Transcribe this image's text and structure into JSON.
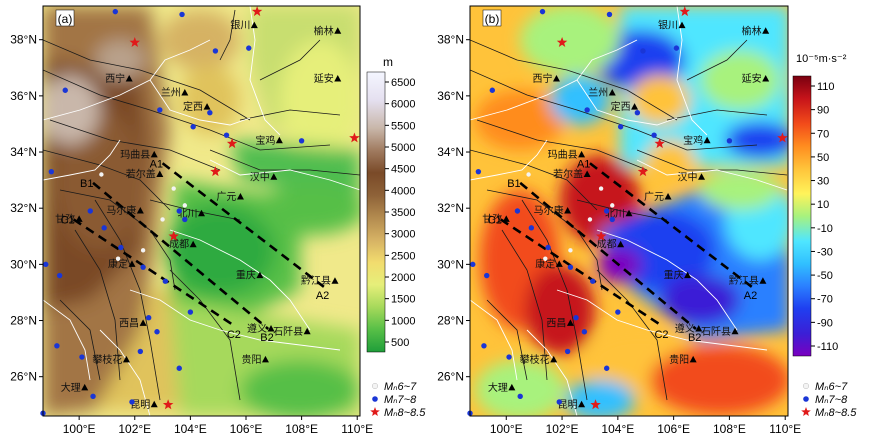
{
  "panels": [
    {
      "id": "a",
      "tag": "(a)",
      "colorbar": {
        "unit": "m",
        "ticks": [
          "6500",
          "6000",
          "5500",
          "5000",
          "4500",
          "4000",
          "3500",
          "3000",
          "2500",
          "2000",
          "1500",
          "1000",
          "500"
        ],
        "colors": [
          "#1f9e3a",
          "#57bf47",
          "#a6d95b",
          "#e6ef7a",
          "#f2dc6e",
          "#d6b264",
          "#b38b4f",
          "#8e6238",
          "#7a4a28",
          "#a07b60",
          "#c9b7aa",
          "#e5e0f0",
          "#f4f6ff"
        ]
      }
    },
    {
      "id": "b",
      "tag": "(b)",
      "colorbar": {
        "unit": "10⁻⁵m·s⁻²",
        "ticks": [
          "110",
          "90",
          "70",
          "50",
          "30",
          "10",
          "-10",
          "-30",
          "-50",
          "-70",
          "-90",
          "-110"
        ],
        "colors": [
          "#7a00c0",
          "#3b1fd6",
          "#1f3ff0",
          "#2b80ff",
          "#31c0ff",
          "#4fe6ff",
          "#a8f27d",
          "#fff35a",
          "#ffc33a",
          "#ff8c1f",
          "#f24b1a",
          "#c6131a",
          "#7a0010"
        ]
      }
    }
  ],
  "axes": {
    "x_ticks": [
      "100°E",
      "102°E",
      "104°E",
      "106°E",
      "108°E",
      "110°E"
    ],
    "y_ticks": [
      "38°N",
      "36°N",
      "34°N",
      "32°N",
      "30°N",
      "28°N",
      "26°N"
    ],
    "xlim": [
      98.7,
      110.1
    ],
    "ylim": [
      24.6,
      39.2
    ]
  },
  "cities": [
    {
      "name": "银川",
      "lon": 106.3,
      "lat": 38.5
    },
    {
      "name": "榆林",
      "lon": 109.3,
      "lat": 38.3
    },
    {
      "name": "西宁",
      "lon": 101.8,
      "lat": 36.6
    },
    {
      "name": "兰州",
      "lon": 103.8,
      "lat": 36.1
    },
    {
      "name": "延安",
      "lon": 109.3,
      "lat": 36.6
    },
    {
      "name": "定西",
      "lon": 104.6,
      "lat": 35.6
    },
    {
      "name": "宝鸡",
      "lon": 107.2,
      "lat": 34.4
    },
    {
      "name": "玛曲县",
      "lon": 102.7,
      "lat": 33.9
    },
    {
      "name": "若尔盖",
      "lon": 102.9,
      "lat": 33.2
    },
    {
      "name": "甘孜",
      "lon": 100.0,
      "lat": 31.6
    },
    {
      "name": "马尔康",
      "lon": 102.2,
      "lat": 31.9
    },
    {
      "name": "广元",
      "lon": 105.8,
      "lat": 32.4
    },
    {
      "name": "汉中",
      "lon": 107.0,
      "lat": 33.1
    },
    {
      "name": "北川",
      "lon": 104.4,
      "lat": 31.8
    },
    {
      "name": "成都",
      "lon": 104.1,
      "lat": 30.7
    },
    {
      "name": "康定",
      "lon": 101.9,
      "lat": 30.0
    },
    {
      "name": "重庆",
      "lon": 106.5,
      "lat": 29.6
    },
    {
      "name": "黔江县",
      "lon": 109.2,
      "lat": 29.4
    },
    {
      "name": "西昌",
      "lon": 102.3,
      "lat": 27.9
    },
    {
      "name": "遵义",
      "lon": 106.9,
      "lat": 27.7
    },
    {
      "name": "石阡县",
      "lon": 108.2,
      "lat": 27.6
    },
    {
      "name": "攀枝花",
      "lon": 101.7,
      "lat": 26.6
    },
    {
      "name": "贵阳",
      "lon": 106.7,
      "lat": 26.6
    },
    {
      "name": "大理",
      "lon": 100.2,
      "lat": 25.6
    },
    {
      "name": "昆明",
      "lon": 102.7,
      "lat": 25.0
    }
  ],
  "profiles": [
    {
      "start": "A1",
      "end": "A2",
      "lon1": 103.0,
      "lat1": 33.6,
      "lon2": 108.8,
      "lat2": 29.2
    },
    {
      "start": "B1",
      "end": "B2",
      "lon1": 100.5,
      "lat1": 32.9,
      "lon2": 106.8,
      "lat2": 27.7
    },
    {
      "start": "C1",
      "end": "C2",
      "lon1": 99.8,
      "lat1": 31.6,
      "lon2": 105.6,
      "lat2": 27.8
    }
  ],
  "earthquakes": [
    {
      "mag": "6-7",
      "lon": 100.8,
      "lat": 33.2
    },
    {
      "mag": "6-7",
      "lon": 103.4,
      "lat": 32.7
    },
    {
      "mag": "6-7",
      "lon": 102.3,
      "lat": 30.5
    },
    {
      "mag": "6-7",
      "lon": 103.0,
      "lat": 31.6
    },
    {
      "mag": "6-7",
      "lon": 103.8,
      "lat": 32.1
    },
    {
      "mag": "6-7",
      "lon": 101.4,
      "lat": 30.2
    },
    {
      "mag": "7-8",
      "lon": 101.3,
      "lat": 39.0
    },
    {
      "mag": "7-8",
      "lon": 103.7,
      "lat": 38.9
    },
    {
      "mag": "7-8",
      "lon": 104.9,
      "lat": 37.6
    },
    {
      "mag": "7-8",
      "lon": 106.1,
      "lat": 37.7
    },
    {
      "mag": "7-8",
      "lon": 99.5,
      "lat": 36.2
    },
    {
      "mag": "7-8",
      "lon": 102.9,
      "lat": 35.5
    },
    {
      "mag": "7-8",
      "lon": 104.1,
      "lat": 34.9
    },
    {
      "mag": "7-8",
      "lon": 104.7,
      "lat": 35.4
    },
    {
      "mag": "7-8",
      "lon": 105.3,
      "lat": 34.6
    },
    {
      "mag": "7-8",
      "lon": 108.0,
      "lat": 34.4
    },
    {
      "mag": "7-8",
      "lon": 99.0,
      "lat": 33.3
    },
    {
      "mag": "7-8",
      "lon": 100.4,
      "lat": 31.9
    },
    {
      "mag": "7-8",
      "lon": 100.9,
      "lat": 31.3
    },
    {
      "mag": "7-8",
      "lon": 101.5,
      "lat": 30.6
    },
    {
      "mag": "7-8",
      "lon": 103.6,
      "lat": 31.9
    },
    {
      "mag": "7-8",
      "lon": 103.8,
      "lat": 31.6
    },
    {
      "mag": "7-8",
      "lon": 102.3,
      "lat": 29.9
    },
    {
      "mag": "7-8",
      "lon": 99.3,
      "lat": 29.6
    },
    {
      "mag": "7-8",
      "lon": 98.8,
      "lat": 30.0
    },
    {
      "mag": "7-8",
      "lon": 103.1,
      "lat": 29.4
    },
    {
      "mag": "7-8",
      "lon": 102.5,
      "lat": 28.1
    },
    {
      "mag": "7-8",
      "lon": 102.8,
      "lat": 27.6
    },
    {
      "mag": "7-8",
      "lon": 104.0,
      "lat": 28.3
    },
    {
      "mag": "7-8",
      "lon": 102.2,
      "lat": 26.9
    },
    {
      "mag": "7-8",
      "lon": 99.2,
      "lat": 27.1
    },
    {
      "mag": "7-8",
      "lon": 100.1,
      "lat": 26.7
    },
    {
      "mag": "7-8",
      "lon": 100.5,
      "lat": 25.3
    },
    {
      "mag": "7-8",
      "lon": 101.9,
      "lat": 25.1
    },
    {
      "mag": "7-8",
      "lon": 103.6,
      "lat": 26.3
    },
    {
      "mag": "7-8",
      "lon": 98.7,
      "lat": 24.7
    },
    {
      "mag": "8-8.5",
      "lon": 106.4,
      "lat": 39.0
    },
    {
      "mag": "8-8.5",
      "lon": 102.0,
      "lat": 37.9
    },
    {
      "mag": "8-8.5",
      "lon": 105.5,
      "lat": 34.3
    },
    {
      "mag": "8-8.5",
      "lon": 109.9,
      "lat": 34.5
    },
    {
      "mag": "8-8.5",
      "lon": 104.9,
      "lat": 33.3
    },
    {
      "mag": "8-8.5",
      "lon": 103.4,
      "lat": 31.0
    },
    {
      "mag": "8-8.5",
      "lon": 103.2,
      "lat": 25.0
    }
  ],
  "legend": [
    {
      "label": "Mₙ6~7",
      "marker": "dot-white",
      "color": "#f4f4f4"
    },
    {
      "label": "Mₙ7~8",
      "marker": "dot-blue",
      "color": "#1a36d6"
    },
    {
      "label": "Mₙ8~8.5",
      "marker": "star-red",
      "color": "#e01a1a"
    }
  ]
}
